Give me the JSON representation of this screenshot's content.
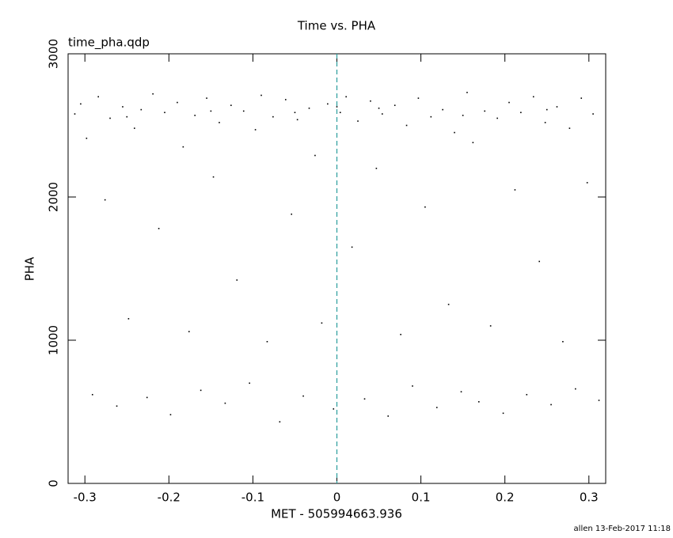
{
  "chart_data": {
    "type": "scatter",
    "title": "Time vs. PHA",
    "subtitle": "time_pha.qdp",
    "x_label": "MET - 505994663.936",
    "y_label": "PHA",
    "footer": "allen 13-Feb-2017 11:18",
    "color": "#000000",
    "marker_line_color": "#2a9d9d",
    "marker_line_x": 0,
    "xlim": [
      -0.32,
      0.32
    ],
    "ylim": [
      0,
      3000
    ],
    "xticks": [
      -0.3,
      -0.2,
      -0.1,
      0,
      0.1,
      0.2,
      0.3
    ],
    "yticks": [
      0,
      1000,
      2000,
      3000
    ],
    "x": [
      -0.312,
      -0.305,
      -0.298,
      -0.291,
      -0.284,
      -0.276,
      -0.27,
      -0.262,
      -0.255,
      -0.248,
      -0.241,
      -0.233,
      -0.226,
      -0.219,
      -0.212,
      -0.205,
      -0.198,
      -0.19,
      -0.183,
      -0.176,
      -0.169,
      -0.162,
      -0.155,
      -0.147,
      -0.14,
      -0.133,
      -0.126,
      -0.119,
      -0.111,
      -0.104,
      -0.097,
      -0.09,
      -0.083,
      -0.076,
      -0.068,
      -0.061,
      -0.054,
      -0.047,
      -0.04,
      -0.033,
      -0.026,
      -0.018,
      -0.011,
      -0.004,
      0.004,
      0.011,
      0.018,
      0.025,
      0.033,
      0.04,
      0.047,
      0.054,
      0.061,
      0.069,
      0.076,
      0.083,
      0.09,
      0.097,
      0.105,
      0.112,
      0.119,
      0.126,
      0.133,
      0.14,
      0.148,
      0.155,
      0.162,
      0.169,
      0.176,
      0.183,
      0.191,
      0.198,
      0.205,
      0.212,
      0.219,
      0.226,
      0.234,
      0.241,
      0.248,
      0.255,
      0.262,
      0.269,
      0.277,
      0.284,
      0.291,
      0.298,
      0.305,
      0.312,
      -0.15,
      0.05,
      -0.25,
      0.25,
      -0.05,
      0.15,
      0.0
    ],
    "values": [
      2580,
      2650,
      2410,
      620,
      2700,
      1980,
      2550,
      540,
      2630,
      1150,
      2480,
      2610,
      600,
      2720,
      1780,
      2590,
      480,
      2660,
      2350,
      1060,
      2570,
      650,
      2690,
      2140,
      2520,
      560,
      2640,
      1420,
      2600,
      700,
      2470,
      2710,
      990,
      2560,
      430,
      2680,
      1880,
      2540,
      610,
      2620,
      2290,
      1120,
      2650,
      520,
      2590,
      2700,
      1650,
      2530,
      590,
      2670,
      2200,
      2580,
      470,
      2640,
      1040,
      2500,
      680,
      2690,
      1930,
      2560,
      530,
      2610,
      1250,
      2450,
      640,
      2730,
      2380,
      570,
      2600,
      1100,
      2550,
      490,
      2660,
      2050,
      2590,
      620,
      2700,
      1550,
      2520,
      550,
      2630,
      990,
      2480,
      660,
      2690,
      2100,
      2580,
      580,
      2600,
      2620,
      2560,
      2610,
      2590,
      2570,
      2630
    ]
  }
}
